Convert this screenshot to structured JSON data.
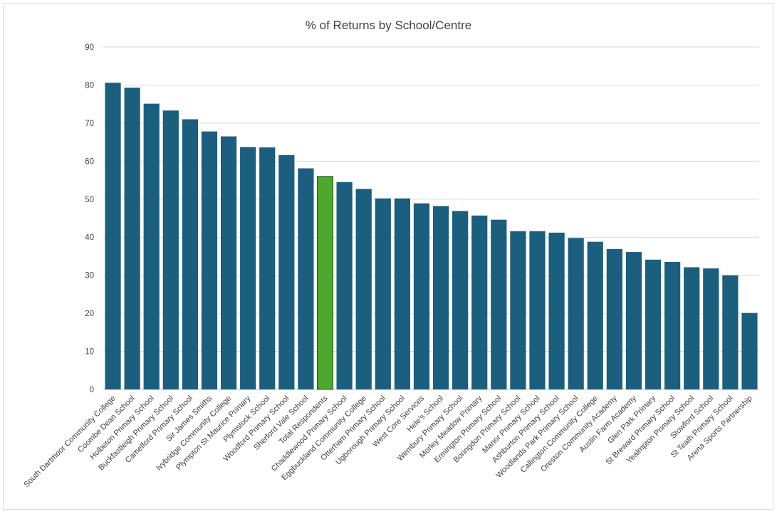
{
  "chart_data": {
    "type": "bar",
    "title": "% of Returns by School/Centre",
    "xlabel": "",
    "ylabel": "",
    "ylim": [
      0,
      90
    ],
    "yticks": [
      0,
      10,
      20,
      30,
      40,
      50,
      60,
      70,
      80,
      90
    ],
    "grid": true,
    "legend": "none",
    "bar_color": "#1b5e7e",
    "highlight_color": "#4ea72e",
    "highlight_index": 11,
    "categories": [
      "South Dartmoor Community College",
      "Coombe Dean School",
      "Holbeton Primary School",
      "Buckfastleigh Primary School",
      "Camelford Primary School",
      "Sir James Smiths",
      "Ivybridge Community College",
      "Plympton St Maurice Primary",
      "Plymstock School",
      "Woodford Primary School",
      "Sherford Vale School",
      "Total Respondents",
      "Chaddlewood Primary School",
      "Eggbuckland Community College",
      "Otterham Primary School",
      "Ugborough Primary School",
      "West Core Services",
      "Hele's School",
      "Wembury Primary School",
      "Morley Meadow Primary",
      "Ermington Primary School",
      "Boringdon Primary School",
      "Manor Primary School",
      "Ashburton Primary School",
      "Woodlands Park Primary School",
      "Callington Community College",
      "Oreston Community Academy",
      "Austin Farm Academy",
      "Glen Park Primary",
      "St Breward Primary School",
      "Yealmpton Primary School",
      "Stowford School",
      "St Teath Primary School",
      "Arena Sports Partnership"
    ],
    "values": [
      80.6,
      79.3,
      75.1,
      73.3,
      71.0,
      67.8,
      66.5,
      63.7,
      63.6,
      61.6,
      58.1,
      56.0,
      54.5,
      52.7,
      50.2,
      50.2,
      48.9,
      48.2,
      46.9,
      45.7,
      44.6,
      41.6,
      41.6,
      41.2,
      39.8,
      38.8,
      36.9,
      36.1,
      34.1,
      33.5,
      32.1,
      31.8,
      30.0,
      20.1
    ]
  }
}
